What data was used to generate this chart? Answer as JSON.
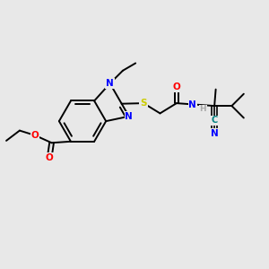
{
  "bg_color": "#e8e8e8",
  "bond_color": "#000000",
  "atom_colors": {
    "N": "#0000ff",
    "O": "#ff0000",
    "S": "#cccc00",
    "C_cyan": "#008080",
    "H": "#aaaaaa"
  },
  "figsize": [
    3.0,
    3.0
  ],
  "dpi": 100
}
